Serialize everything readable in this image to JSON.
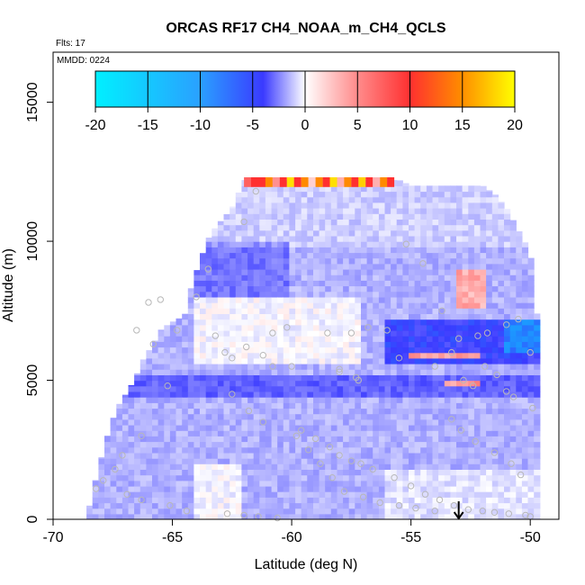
{
  "chart_data": {
    "type": "heatmap",
    "title": "ORCAS RF17 CH4_NOAA_m_CH4_QCLS",
    "subtitle_flts": "Flts: 17",
    "subtitle_mmdd": "MMDD: 0224",
    "xlabel": "Latitude (deg N)",
    "ylabel": "Altitude (m)",
    "xlim": [
      -70,
      -48.8
    ],
    "ylim": [
      0,
      16800
    ],
    "x_ticks": [
      -70,
      -65,
      -60,
      -55,
      -50
    ],
    "y_ticks": [
      0,
      5000,
      10000,
      15000
    ],
    "colorbar": {
      "range": [
        -20,
        20
      ],
      "ticks": [
        -20,
        -15,
        -10,
        -5,
        0,
        5,
        10,
        15,
        20
      ],
      "colors": {
        "neg_max": "#00f0ff",
        "neg_mid": "#3a3aff",
        "zero": "#ffffff",
        "pos_mid": "#ff3030",
        "pos_max": "#ffff00"
      }
    },
    "marker": {
      "label": "down-arrow",
      "x": -53,
      "y": 300
    },
    "profile_x": [
      -68.5,
      -68.2,
      -67.8,
      -67.5,
      -67.2,
      -66.8,
      -66.5,
      -66.2,
      -65.8,
      -65.5,
      -65.2,
      -64.8,
      -64.5,
      -64.2,
      -63.8,
      -63.5,
      -63.2,
      -62.8,
      -62.5,
      -62.0,
      -61.5,
      -61.0,
      -60.5,
      -60.0,
      -59.5,
      -59.0,
      -58.5,
      -58.0,
      -57.5,
      -57.0,
      -56.5,
      -56.0,
      -55.5,
      -55.0,
      -54.5,
      -54.0,
      -53.5,
      -53.0,
      -52.5,
      -52.0,
      -51.5,
      -51.0,
      -50.5,
      -50.0,
      -49.7
    ],
    "profile_top": [
      400,
      1500,
      2800,
      3600,
      4200,
      4700,
      5200,
      5800,
      6300,
      6800,
      7000,
      7200,
      7300,
      8400,
      9400,
      10100,
      10500,
      10900,
      11200,
      12200,
      12200,
      12200,
      12200,
      12200,
      12200,
      12200,
      12200,
      12200,
      12200,
      12200,
      12200,
      12200,
      12200,
      12000,
      12000,
      12000,
      12000,
      12000,
      12000,
      12000,
      11700,
      11200,
      10400,
      9600,
      7200
    ],
    "cells_description": "",
    "points_x": [
      -61.5,
      -62.0,
      -63.5,
      -64.0,
      -65.5,
      -66.0,
      -64.8,
      -63.2,
      -60.2,
      -60.8,
      -58.5,
      -57.5,
      -56.8,
      -56.0,
      -55.2,
      -54.5,
      -53.7,
      -53.0,
      -52.2,
      -51.8,
      -51.0,
      -50.5,
      -50.0,
      -49.9,
      -60.0,
      -58.0,
      -57.2,
      -55.5,
      -54.0,
      -53.3,
      -52.8,
      -52.4,
      -51.9,
      -51.4,
      -51.0,
      -50.7,
      -65.2,
      -66.3,
      -67.1,
      -67.4,
      -67.9,
      -68.2,
      -66.9,
      -66.3,
      -65.1,
      -64.4,
      -62.7,
      -62.0,
      -61.4,
      -60.6,
      -59.6,
      -59.0,
      -58.4,
      -58.0,
      -57.5,
      -57.1,
      -56.6,
      -55.7,
      -55.0,
      -54.4,
      -53.8,
      -53.2,
      -52.6,
      -52.0,
      -51.5,
      -50.9,
      -50.2,
      -50.0,
      -65.8,
      -66.5,
      -62.5,
      -61.8,
      -61.2,
      -59.8,
      -59.3,
      -58.8,
      -58.3,
      -57.8,
      -57.0,
      -56.3,
      -55.5,
      -54.8,
      -54.0,
      -53.3,
      -52.9,
      -52.3,
      -51.5,
      -50.8,
      -50.4,
      -62.5,
      -62.8,
      -61.9,
      -61.2,
      -60.8,
      -58.0,
      -57.3
    ],
    "points_y": [
      11800,
      10700,
      9000,
      8000,
      7900,
      7800,
      6800,
      6600,
      6900,
      6700,
      6700,
      6700,
      6900,
      6800,
      9900,
      9200,
      7500,
      6500,
      6600,
      6700,
      7000,
      7200,
      6000,
      4000,
      5500,
      5400,
      5000,
      5800,
      5500,
      6000,
      5000,
      4800,
      5500,
      5200,
      4600,
      4400,
      4800,
      3000,
      2300,
      1800,
      1400,
      1100,
      900,
      700,
      500,
      300,
      200,
      150,
      100,
      50,
      3200,
      2900,
      2600,
      2300,
      2100,
      2000,
      1800,
      1500,
      1200,
      900,
      700,
      500,
      350,
      300,
      250,
      200,
      150,
      100,
      6300,
      6800,
      4500,
      3900,
      3500,
      3000,
      2500,
      2000,
      1500,
      1000,
      800,
      600,
      500,
      400,
      300,
      3600,
      3200,
      2800,
      2400,
      2000,
      1600,
      5800,
      6000,
      6200,
      5900,
      5500,
      5300,
      5100
    ]
  }
}
